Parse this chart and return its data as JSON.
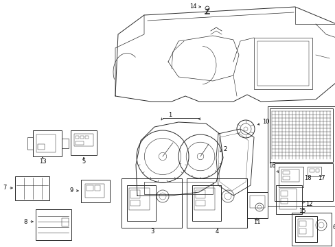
{
  "bg_color": "#ffffff",
  "line_color": "#2a2a2a",
  "fig_width": 4.89,
  "fig_height": 3.6,
  "dpi": 100,
  "label_fontsize": 6.0
}
